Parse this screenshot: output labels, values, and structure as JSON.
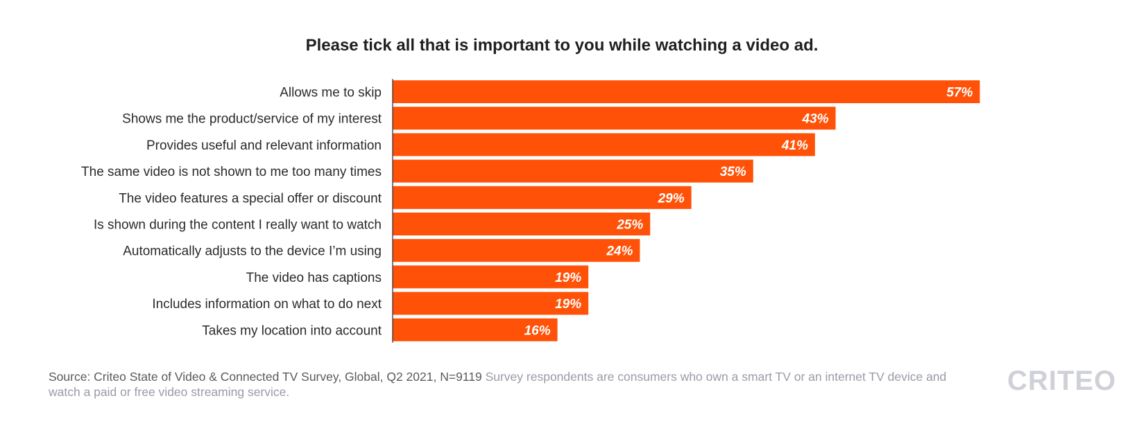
{
  "chart_data": {
    "type": "bar",
    "orientation": "horizontal",
    "title": "Please tick all that is important to you while watching a video ad.",
    "categories": [
      "Allows me to skip",
      "Shows me the product/service of my interest",
      "Provides useful and relevant information",
      "The same video is not shown to me too many times",
      "The video features a special offer or discount",
      "Is shown during the content I really want to watch",
      "Automatically adjusts to the device I’m using",
      "The video has captions",
      "Includes information on what to do next",
      "Takes my location into account"
    ],
    "values": [
      57,
      43,
      41,
      35,
      29,
      25,
      24,
      19,
      19,
      16
    ],
    "value_labels": [
      "57%",
      "43%",
      "41%",
      "35%",
      "29%",
      "25%",
      "24%",
      "19%",
      "19%",
      "16%"
    ],
    "unit": "%",
    "grid": false,
    "legend": "none",
    "bar_color": "#ff5208"
  },
  "source": {
    "text": "Source: Criteo State of Video & Connected TV Survey, Global, Q2 2021, N=9119",
    "note": "Survey respondents are consumers who own a smart TV or an internet TV device and watch a paid or free video streaming service."
  },
  "brand": {
    "logo_text": "CRITEO",
    "color": "#cfd0d8"
  }
}
